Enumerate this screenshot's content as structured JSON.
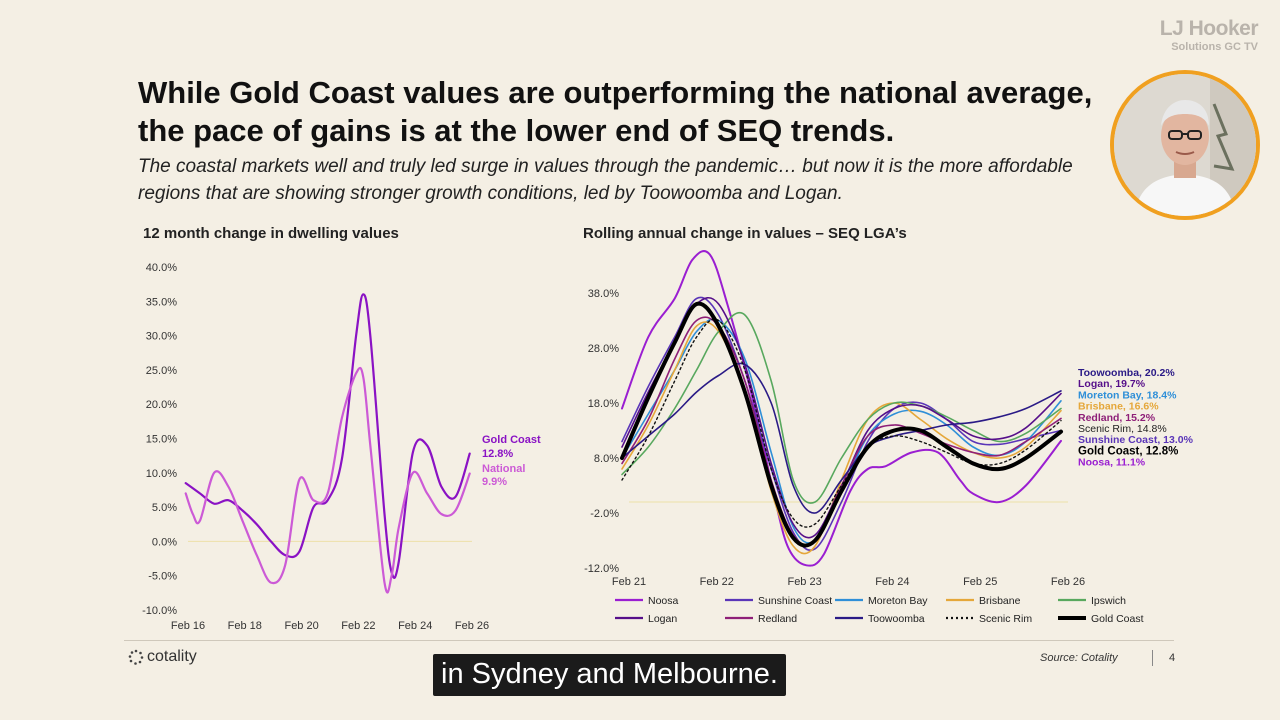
{
  "brand": {
    "line1": "LJ Hooker",
    "line2": "Solutions GC TV"
  },
  "headline": "While Gold Coast values are outperforming the national average, the pace of gains is at the lower end of SEQ trends.",
  "subheadline": "The coastal markets well and truly led surge in values through the pandemic… but now it is the more affordable regions that are showing stronger growth conditions, led by Toowoomba and Logan.",
  "footer": {
    "logo_text": "cotality",
    "source": "Source: Cotality",
    "page": "4"
  },
  "caption": "in Sydney and Melbourne.",
  "colors": {
    "gold_coast_left": "#8a12c4",
    "national_left": "#cc5ad6",
    "zero_line": "#ede0a8"
  },
  "chart_data": [
    {
      "type": "line",
      "title": "12 month change in dwelling values",
      "x_ticks": [
        "Feb 16",
        "Feb 18",
        "Feb 20",
        "Feb 22",
        "Feb 24",
        "Feb 26"
      ],
      "x_range": [
        2016.08,
        2026.08
      ],
      "y_ticks": [
        "40.0%",
        "35.0%",
        "30.0%",
        "25.0%",
        "20.0%",
        "15.0%",
        "10.0%",
        "5.0%",
        "0.0%",
        "-5.0%",
        "-10.0%"
      ],
      "ylim": [
        -10,
        40
      ],
      "grid": false,
      "series": [
        {
          "name": "Gold Coast",
          "end_label": "12.8%",
          "color": "#8a12c4",
          "x": [
            2016.0,
            2016.5,
            2017.0,
            2017.5,
            2018.0,
            2018.5,
            2019.0,
            2019.5,
            2020.0,
            2020.5,
            2021.0,
            2021.5,
            2022.0,
            2022.25,
            2022.5,
            2023.0,
            2023.25,
            2023.5,
            2024.0,
            2024.5,
            2025.0,
            2025.5,
            2026.0
          ],
          "y": [
            8.5,
            7.0,
            5.5,
            6.0,
            4.5,
            2.5,
            0.0,
            -2.0,
            -1.5,
            5.0,
            6.0,
            12.0,
            30.0,
            36.0,
            30.0,
            4.0,
            -4.5,
            -3.0,
            13.0,
            14.0,
            8.0,
            6.5,
            12.8
          ]
        },
        {
          "name": "National",
          "end_label": "9.9%",
          "color": "#cc5ad6",
          "x": [
            2016.0,
            2016.25,
            2016.5,
            2017.0,
            2017.5,
            2018.0,
            2018.5,
            2019.0,
            2019.5,
            2020.0,
            2020.5,
            2021.0,
            2021.5,
            2022.0,
            2022.25,
            2022.5,
            2023.0,
            2023.25,
            2023.5,
            2024.0,
            2024.5,
            2025.0,
            2025.5,
            2026.0
          ],
          "y": [
            7.0,
            4.0,
            3.0,
            10.0,
            8.0,
            3.0,
            -2.0,
            -6.0,
            -3.5,
            9.0,
            6.0,
            7.0,
            18.0,
            24.5,
            24.0,
            14.0,
            -6.0,
            -5.0,
            2.0,
            10.0,
            7.0,
            4.0,
            4.5,
            9.9
          ]
        }
      ]
    },
    {
      "type": "line",
      "title": "Rolling annual change in values – SEQ LGA’s",
      "x_ticks": [
        "Feb 21",
        "Feb 22",
        "Feb 23",
        "Feb 24",
        "Feb 25",
        "Feb 26"
      ],
      "x_range": [
        2021.08,
        2026.08
      ],
      "y_ticks": [
        "38.0%",
        "28.0%",
        "18.0%",
        "8.0%",
        "-2.0%",
        "-12.0%"
      ],
      "ylim": [
        -12,
        38
      ],
      "grid": false,
      "legend": "bottom",
      "series": [
        {
          "name": "Noosa",
          "end_label": "Noosa, 11.1%",
          "color": "#9a1ed1",
          "width": 2,
          "x": [
            2021.0,
            2021.3,
            2021.6,
            2021.8,
            2022.0,
            2022.2,
            2022.5,
            2022.75,
            2022.9,
            2023.1,
            2023.3,
            2023.6,
            2023.8,
            2024.0,
            2024.3,
            2024.6,
            2024.85,
            2025.0,
            2025.3,
            2025.6,
            2026.0
          ],
          "y": [
            17.0,
            30.0,
            37.0,
            44.0,
            45.0,
            36.0,
            18.0,
            0.0,
            -8.5,
            -11.5,
            -9.5,
            2.0,
            6.0,
            6.5,
            9.0,
            9.0,
            4.0,
            1.5,
            0.0,
            3.0,
            11.1
          ]
        },
        {
          "name": "Sunshine Coast",
          "end_label": "Sunshine Coast, 13.0%",
          "color": "#5a35b8",
          "width": 1.6,
          "x": [
            2021.0,
            2021.3,
            2021.6,
            2021.85,
            2022.1,
            2022.4,
            2022.7,
            2022.95,
            2023.2,
            2023.5,
            2023.8,
            2024.1,
            2024.4,
            2024.7,
            2025.0,
            2025.3,
            2025.6,
            2026.0
          ],
          "y": [
            11.0,
            21.0,
            30.0,
            37.0,
            34.0,
            22.0,
            6.0,
            -5.5,
            -8.5,
            0.0,
            11.0,
            17.0,
            18.0,
            15.0,
            11.0,
            10.5,
            11.5,
            13.0
          ]
        },
        {
          "name": "Moreton Bay",
          "end_label": "Moreton Bay, 18.4%",
          "color": "#2f8fd8",
          "width": 1.6,
          "x": [
            2021.0,
            2021.3,
            2021.6,
            2021.85,
            2022.1,
            2022.4,
            2022.7,
            2022.95,
            2023.2,
            2023.5,
            2023.8,
            2024.1,
            2024.4,
            2024.7,
            2025.0,
            2025.3,
            2025.6,
            2026.0
          ],
          "y": [
            8.0,
            16.0,
            24.0,
            31.0,
            33.0,
            26.0,
            9.0,
            -4.5,
            -7.0,
            2.0,
            12.0,
            16.0,
            16.5,
            14.0,
            10.0,
            8.5,
            11.0,
            18.4
          ]
        },
        {
          "name": "Brisbane",
          "end_label": "Brisbane, 16.6%",
          "color": "#e5a73a",
          "width": 1.6,
          "x": [
            2021.0,
            2021.3,
            2021.6,
            2021.85,
            2022.1,
            2022.4,
            2022.7,
            2022.95,
            2023.2,
            2023.5,
            2023.8,
            2024.1,
            2024.4,
            2024.7,
            2025.0,
            2025.3,
            2025.6,
            2026.0
          ],
          "y": [
            6.0,
            14.0,
            24.0,
            32.0,
            31.0,
            20.0,
            2.0,
            -8.0,
            -8.0,
            4.0,
            15.0,
            18.0,
            15.0,
            11.5,
            9.0,
            8.0,
            10.0,
            16.6
          ]
        },
        {
          "name": "Ipswich",
          "end_label": "",
          "color": "#58a85e",
          "width": 1.6,
          "x": [
            2021.0,
            2021.3,
            2021.6,
            2021.85,
            2022.1,
            2022.4,
            2022.7,
            2022.95,
            2023.2,
            2023.5,
            2023.8,
            2024.1,
            2024.4,
            2024.7,
            2025.0,
            2025.3,
            2025.6,
            2026.0
          ],
          "y": [
            5.0,
            10.0,
            17.0,
            24.0,
            31.0,
            34.0,
            22.0,
            4.0,
            0.0,
            8.0,
            15.0,
            18.0,
            17.5,
            15.5,
            13.0,
            11.0,
            12.5,
            17.0
          ]
        },
        {
          "name": "Logan",
          "end_label": "Logan, 19.7%",
          "color": "#560f8a",
          "width": 1.6,
          "x": [
            2021.0,
            2021.3,
            2021.6,
            2021.85,
            2022.1,
            2022.4,
            2022.7,
            2022.95,
            2023.2,
            2023.5,
            2023.8,
            2024.1,
            2024.4,
            2024.7,
            2025.0,
            2025.3,
            2025.6,
            2026.0
          ],
          "y": [
            10.0,
            20.0,
            29.0,
            36.0,
            36.0,
            25.0,
            7.0,
            -4.0,
            -6.0,
            3.0,
            13.0,
            17.0,
            17.5,
            15.0,
            12.0,
            11.5,
            13.5,
            19.7
          ]
        },
        {
          "name": "Redland",
          "end_label": "Redland, 15.2%",
          "color": "#8e1f78",
          "width": 1.6,
          "x": [
            2021.0,
            2021.3,
            2021.6,
            2021.85,
            2022.1,
            2022.4,
            2022.7,
            2022.95,
            2023.2,
            2023.5,
            2023.8,
            2024.1,
            2024.4,
            2024.7,
            2025.0,
            2025.3,
            2025.6,
            2026.0
          ],
          "y": [
            7.0,
            15.0,
            26.0,
            33.0,
            32.0,
            22.0,
            4.0,
            -6.0,
            -7.0,
            3.0,
            12.0,
            14.0,
            12.5,
            10.5,
            9.0,
            8.5,
            11.0,
            15.2
          ]
        },
        {
          "name": "Toowoomba",
          "end_label": "Toowoomba, 20.2%",
          "color": "#2a1a86",
          "width": 1.6,
          "x": [
            2021.0,
            2021.3,
            2021.6,
            2021.85,
            2022.1,
            2022.4,
            2022.7,
            2022.95,
            2023.2,
            2023.5,
            2023.8,
            2024.1,
            2024.4,
            2024.7,
            2025.0,
            2025.3,
            2025.6,
            2026.0
          ],
          "y": [
            8.0,
            12.0,
            16.0,
            20.0,
            23.0,
            25.0,
            18.0,
            3.0,
            -2.0,
            4.0,
            10.0,
            12.0,
            13.0,
            14.0,
            14.5,
            15.5,
            17.0,
            20.2
          ]
        },
        {
          "name": "Scenic Rim",
          "end_label": "Scenic Rim, 14.8%",
          "color": "#111111",
          "width": 1.4,
          "dashed": true,
          "x": [
            2021.0,
            2021.3,
            2021.6,
            2021.85,
            2022.1,
            2022.4,
            2022.7,
            2022.95,
            2023.2,
            2023.5,
            2023.8,
            2024.1,
            2024.4,
            2024.7,
            2025.0,
            2025.3,
            2025.6,
            2026.0
          ],
          "y": [
            4.0,
            12.0,
            22.0,
            30.0,
            33.0,
            24.0,
            6.0,
            -3.0,
            -4.0,
            3.0,
            10.0,
            12.0,
            11.0,
            9.0,
            7.0,
            7.0,
            9.5,
            14.8
          ]
        },
        {
          "name": "Gold Coast",
          "end_label": "Gold Coast, 12.8%",
          "color": "#000000",
          "width": 4,
          "x": [
            2021.0,
            2021.3,
            2021.6,
            2021.85,
            2022.1,
            2022.4,
            2022.7,
            2022.95,
            2023.2,
            2023.5,
            2023.8,
            2024.1,
            2024.4,
            2024.7,
            2025.0,
            2025.3,
            2025.6,
            2026.0
          ],
          "y": [
            8.0,
            19.0,
            29.0,
            36.0,
            32.0,
            20.0,
            3.0,
            -6.5,
            -7.0,
            2.0,
            10.0,
            13.0,
            13.0,
            10.0,
            7.0,
            6.0,
            8.0,
            12.8
          ]
        }
      ]
    }
  ]
}
